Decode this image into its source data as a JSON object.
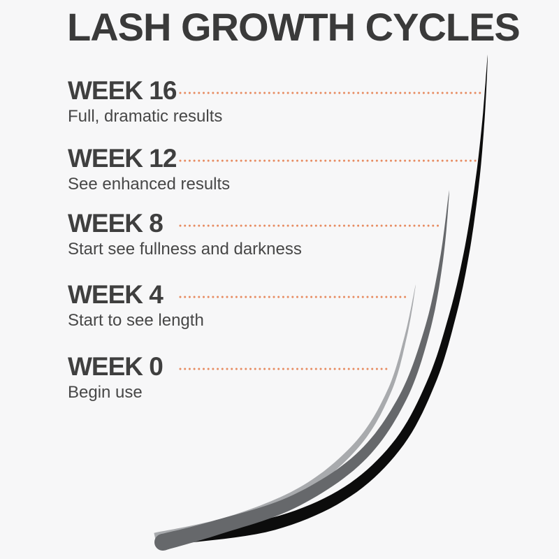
{
  "title": "LASH GROWTH CYCLES",
  "timeline": [
    {
      "week": "WEEK 16",
      "description": "Full, dramatic results"
    },
    {
      "week": "WEEK 12",
      "description": "See enhanced results"
    },
    {
      "week": "WEEK 8",
      "description": "Start see fullness and darkness"
    },
    {
      "week": "WEEK 4",
      "description": "Start to see length"
    },
    {
      "week": "WEEK 0",
      "description": "Begin use"
    }
  ],
  "colors": {
    "background": "#f7f7f8",
    "title": "#3a3a3a",
    "week_label": "#3f3f3f",
    "description": "#474747",
    "dots": "#e78a5f",
    "lash_black": "#0c0c0c",
    "lash_gray": "#66686b",
    "lash_light_gray": "#a8aaad"
  }
}
